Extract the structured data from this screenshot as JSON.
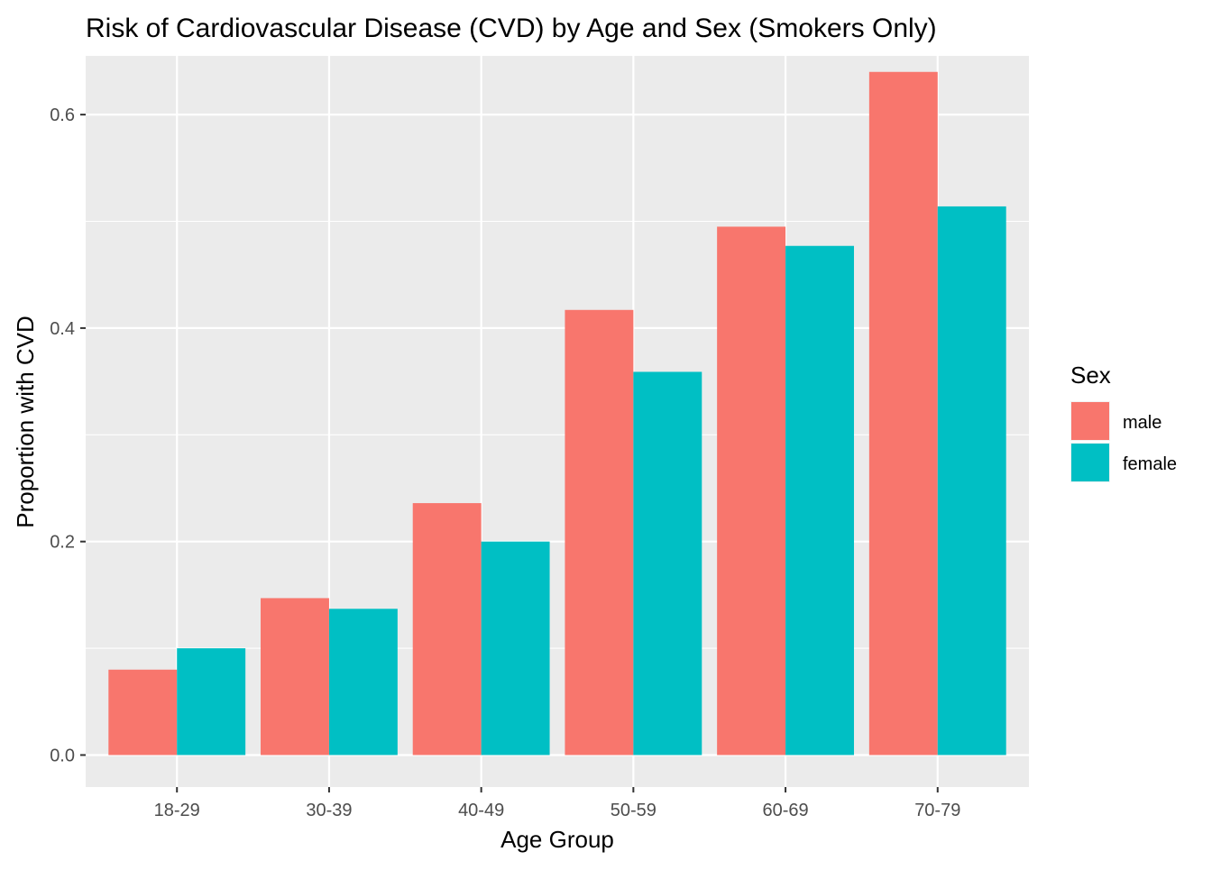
{
  "chart_data": {
    "type": "bar",
    "title": "Risk of Cardiovascular Disease (CVD) by Age and Sex (Smokers Only)",
    "xlabel": "Age Group",
    "ylabel": "Proportion with CVD",
    "categories": [
      "18-29",
      "30-39",
      "40-49",
      "50-59",
      "60-69",
      "70-79"
    ],
    "series": [
      {
        "name": "male",
        "color": "#F8766D",
        "values": [
          0.08,
          0.147,
          0.236,
          0.417,
          0.495,
          0.64
        ]
      },
      {
        "name": "female",
        "color": "#00BFC4",
        "values": [
          0.1,
          0.137,
          0.2,
          0.359,
          0.477,
          0.514
        ]
      }
    ],
    "ylim": [
      -0.03,
      0.655
    ],
    "yticks": [
      0.0,
      0.2,
      0.4,
      0.6
    ],
    "ytick_labels": [
      "0.0",
      "0.2",
      "0.4",
      "0.6"
    ],
    "grid": true,
    "legend": {
      "title": "Sex",
      "position": "right"
    },
    "panel_background": "#EBEBEB",
    "grid_color": "#FFFFFF"
  }
}
